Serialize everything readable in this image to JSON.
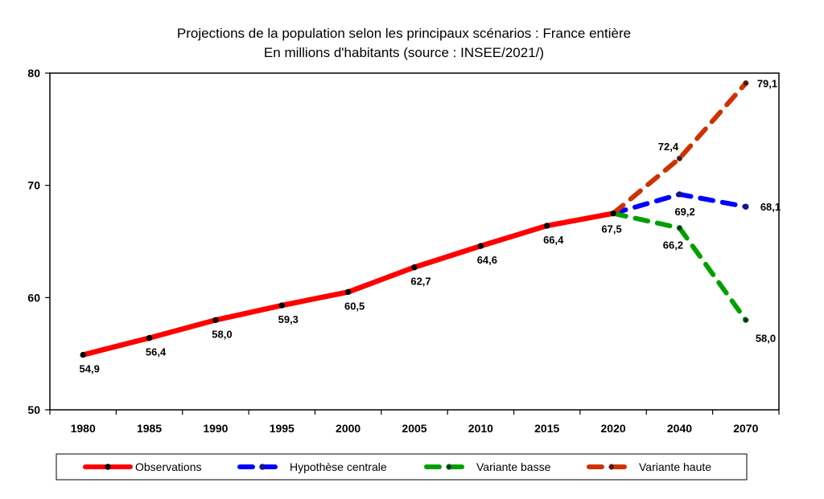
{
  "chart_data": {
    "type": "line",
    "title": "Projections de la population selon les principaux scénarios : France entière",
    "subtitle": "En millions d'habitants (source : INSEE/2021/)",
    "categories": [
      "1980",
      "1985",
      "1990",
      "1995",
      "2000",
      "2005",
      "2010",
      "2015",
      "2020",
      "2040",
      "2070"
    ],
    "ylim": [
      50,
      80
    ],
    "yticks": [
      "50",
      "60",
      "70",
      "80"
    ],
    "grid": false,
    "legend_position": "bottom",
    "series": [
      {
        "name": "Observations",
        "color": "#ff0000",
        "dashed": false,
        "points": [
          {
            "x": "1980",
            "y": 54.9,
            "label": "54,9"
          },
          {
            "x": "1985",
            "y": 56.4,
            "label": "56,4"
          },
          {
            "x": "1990",
            "y": 58.0,
            "label": "58,0"
          },
          {
            "x": "1995",
            "y": 59.3,
            "label": "59,3"
          },
          {
            "x": "2000",
            "y": 60.5,
            "label": "60,5"
          },
          {
            "x": "2005",
            "y": 62.7,
            "label": "62,7"
          },
          {
            "x": "2010",
            "y": 64.6,
            "label": "64,6"
          },
          {
            "x": "2015",
            "y": 66.4,
            "label": "66,4"
          },
          {
            "x": "2020",
            "y": 67.5,
            "label": "67,5"
          }
        ]
      },
      {
        "name": "Hypothèse centrale",
        "color": "#0000ff",
        "dashed": true,
        "points": [
          {
            "x": "2020",
            "y": 67.5,
            "label": ""
          },
          {
            "x": "2040",
            "y": 69.2,
            "label": "69,2"
          },
          {
            "x": "2070",
            "y": 68.1,
            "label": "68,1"
          }
        ]
      },
      {
        "name": "Variante basse",
        "color": "#00a000",
        "dashed": true,
        "points": [
          {
            "x": "2020",
            "y": 67.5,
            "label": ""
          },
          {
            "x": "2040",
            "y": 66.2,
            "label": "66,2"
          },
          {
            "x": "2070",
            "y": 58.0,
            "label": "58,0"
          }
        ]
      },
      {
        "name": "Variante haute",
        "color": "#cc3300",
        "dashed": true,
        "points": [
          {
            "x": "2020",
            "y": 67.5,
            "label": ""
          },
          {
            "x": "2040",
            "y": 72.4,
            "label": "72,4"
          },
          {
            "x": "2070",
            "y": 79.1,
            "label": "79,1"
          }
        ]
      }
    ]
  }
}
